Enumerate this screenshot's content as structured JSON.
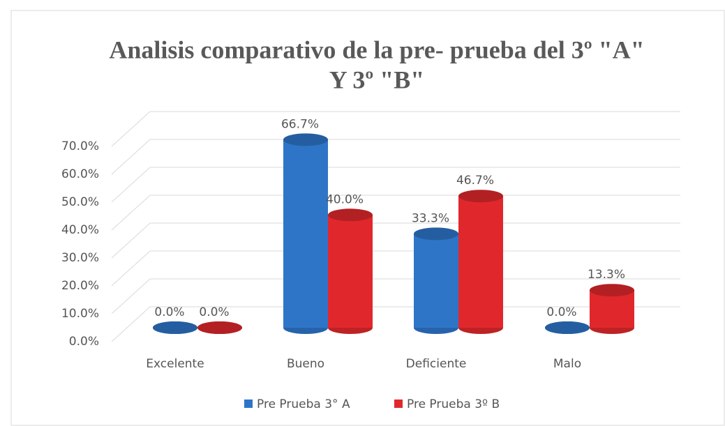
{
  "chart_data": {
    "type": "bar3d",
    "title": [
      "Analisis comparativo  de la pre- prueba del 3º \"A\"",
      "Y 3º \"B\""
    ],
    "categories": [
      "Excelente",
      "Bueno",
      "Deficiente",
      "Malo"
    ],
    "series": [
      {
        "name": "Pre Prueba 3° A",
        "color": "#2e75c8",
        "values": [
          0,
          66.7,
          33.3,
          0
        ],
        "value_labels": [
          "0.0%",
          "66.7%",
          "33.3%",
          "0.0%"
        ]
      },
      {
        "name": "Pre Prueba 3º B",
        "color": "#e0282c",
        "values": [
          0,
          40,
          46.7,
          13.3
        ],
        "value_labels": [
          "0.0%",
          "40.0%",
          "46.7%",
          "13.3%"
        ]
      }
    ],
    "ylim": [
      0,
      70
    ],
    "yticks": [
      {
        "value": 0,
        "label": "0.0%"
      },
      {
        "value": 10,
        "label": "10.0%"
      },
      {
        "value": 20,
        "label": "20.0%"
      },
      {
        "value": 30,
        "label": "30.0%"
      },
      {
        "value": 40,
        "label": "40.0%"
      },
      {
        "value": 50,
        "label": "50.0%"
      },
      {
        "value": 60,
        "label": "60.0%"
      },
      {
        "value": 70,
        "label": "70.0%"
      }
    ],
    "grid": true
  }
}
